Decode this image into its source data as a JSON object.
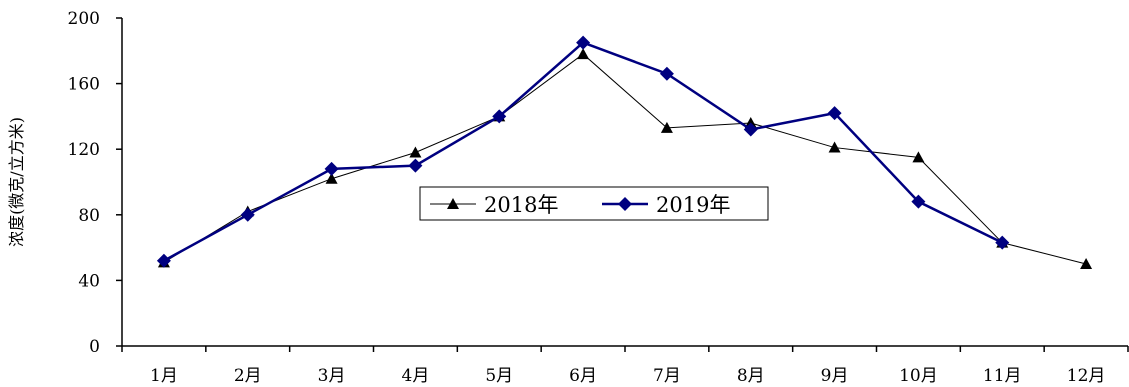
{
  "chart_data": {
    "type": "line",
    "title": "",
    "xlabel": "",
    "ylabel": "浓度(微克/立方米)",
    "ylim": [
      0,
      200
    ],
    "yticks": [
      0,
      40,
      80,
      120,
      160,
      200
    ],
    "categories": [
      "1月",
      "2月",
      "3月",
      "4月",
      "5月",
      "6月",
      "7月",
      "8月",
      "9月",
      "10月",
      "11月",
      "12月"
    ],
    "series": [
      {
        "name": "2018年",
        "marker": "triangle",
        "color": "#000000",
        "values": [
          51,
          82,
          102,
          118,
          140,
          178,
          133,
          136,
          121,
          115,
          63,
          50
        ]
      },
      {
        "name": "2019年",
        "marker": "diamond",
        "color": "#000080",
        "values": [
          52,
          80,
          108,
          110,
          140,
          185,
          166,
          132,
          142,
          88,
          63,
          null
        ]
      }
    ],
    "grid": false,
    "legend": "center"
  }
}
